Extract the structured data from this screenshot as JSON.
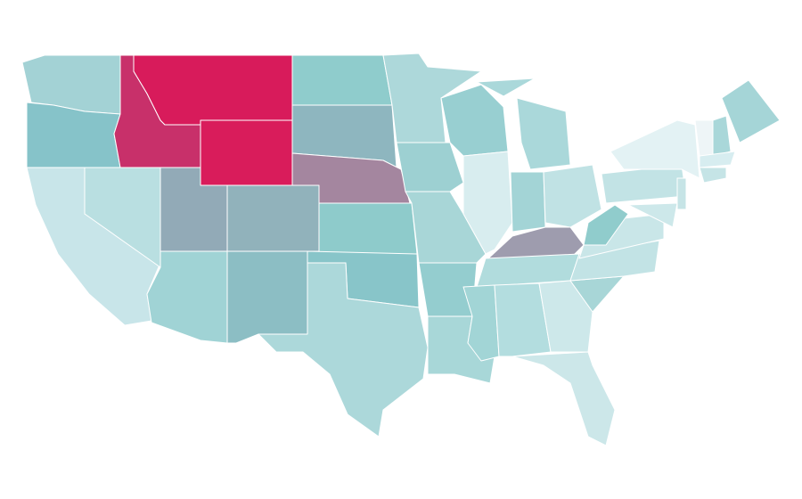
{
  "map": {
    "regions": [
      {
        "color": "#a3d2d5"
      },
      {
        "color": "#86c3c9"
      },
      {
        "color": "#c8e5e9"
      },
      {
        "color": "#b9dfe1"
      },
      {
        "color": "#c8306a"
      },
      {
        "color": "#d81b5b"
      },
      {
        "color": "#d91c5b"
      },
      {
        "color": "#92aab7"
      },
      {
        "color": "#91b2bb"
      },
      {
        "color": "#a0d3d5"
      },
      {
        "color": "#8cbec4"
      },
      {
        "color": "#8fcccc"
      },
      {
        "color": "#8eb6bf"
      },
      {
        "color": "#a4869f"
      },
      {
        "color": "#8ecbcb"
      },
      {
        "color": "#88c5c9"
      },
      {
        "color": "#acd8da"
      },
      {
        "color": "#add8da"
      },
      {
        "color": "#9dd0d2"
      },
      {
        "color": "#a8d6d7"
      },
      {
        "color": "#94cdcf"
      },
      {
        "color": "#a8d7d8"
      },
      {
        "color": "#98cfd1"
      },
      {
        "color": "#d8edef"
      },
      {
        "color": "#aad8da"
      },
      {
        "color": "#a3d4d6"
      },
      {
        "color": "#c0e2e4"
      },
      {
        "color": "#9e9cae"
      },
      {
        "color": "#b1dcdd"
      },
      {
        "color": "#a2d5d6"
      },
      {
        "color": "#b3dddf"
      },
      {
        "color": "#cde8ea"
      },
      {
        "color": "#cce7e9"
      },
      {
        "color": "#a8d6d7"
      },
      {
        "color": "#c2e3e5"
      },
      {
        "color": "#c9e6e8"
      },
      {
        "color": "#90cccc"
      },
      {
        "color": "#c2e3e5"
      },
      {
        "color": "#e3f2f4"
      },
      {
        "color": "#a5d5d7"
      },
      {
        "color": "#eef5f7"
      },
      {
        "color": "#a9d7d9"
      },
      {
        "color": "#d7edf0"
      },
      {
        "color": "#c5e4e6"
      },
      {
        "color": "#c6e4e6"
      },
      {
        "color": "#cde8ea"
      }
    ]
  }
}
